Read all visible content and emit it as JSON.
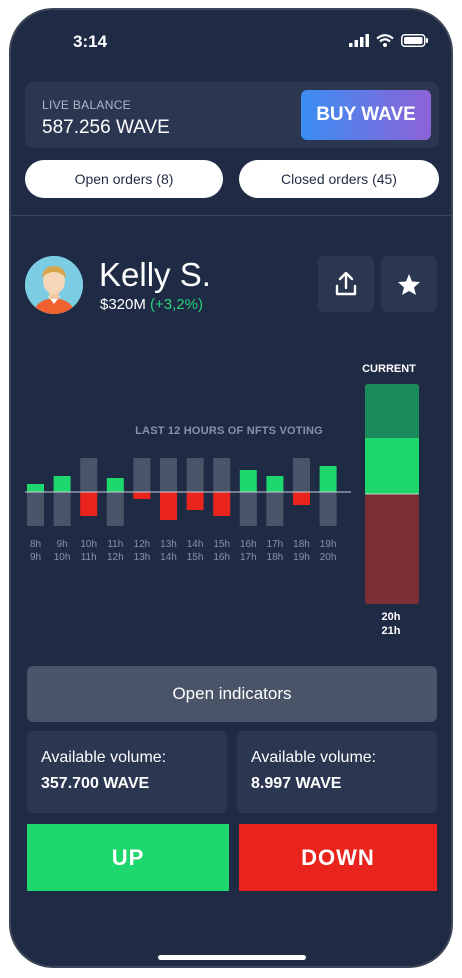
{
  "status_bar": {
    "time": "3:14"
  },
  "balance": {
    "label": "LIVE BALANCE",
    "value": "587.256 WAVE",
    "buy_label": "BUY WAVE"
  },
  "orders": {
    "open_label": "Open orders (8)",
    "closed_label": "Closed orders (45)"
  },
  "profile": {
    "name": "Kelly S.",
    "value": "$320M",
    "change": "(+3,2%)"
  },
  "chart_data": {
    "type": "bar",
    "title": "LAST 12 HOURS OF NFTS VOTING",
    "categories": [
      "8h 9h",
      "9h 10h",
      "10h 11h",
      "11h 12h",
      "12h 13h",
      "13h 14h",
      "14h 15h",
      "15h 16h",
      "16h 17h",
      "17h 18h",
      "18h 19h",
      "19h 20h"
    ],
    "tick_top": [
      "8h",
      "9h",
      "10h",
      "11h",
      "12h",
      "13h",
      "14h",
      "15h",
      "16h",
      "17h",
      "18h",
      "19h"
    ],
    "tick_bottom": [
      "9h",
      "10h",
      "11h",
      "12h",
      "13h",
      "14h",
      "15h",
      "16h",
      "17h",
      "18h",
      "19h",
      "20h"
    ],
    "series": [
      {
        "values": [
          8,
          16,
          0,
          14,
          0,
          0,
          0,
          0,
          22,
          16,
          0,
          26
        ]
      },
      {
        "values": [
          0,
          0,
          -24,
          0,
          -7,
          -28,
          -18,
          -24,
          0,
          0,
          -13,
          0
        ]
      }
    ],
    "colors": {
      "up": "#1ed86e",
      "down": "#e8241c",
      "neutral": "#4a5468"
    },
    "current": {
      "label": "CURRENT",
      "time_top": "20h",
      "time_bottom": "21h",
      "up": 0.5,
      "down": 0.5
    }
  },
  "actions": {
    "open_indicators": "Open indicators",
    "up_label": "UP",
    "down_label": "DOWN"
  },
  "volumes": [
    {
      "label": "Available volume:",
      "value": "357.700 WAVE"
    },
    {
      "label": "Available volume:",
      "value": "8.997 WAVE"
    }
  ]
}
